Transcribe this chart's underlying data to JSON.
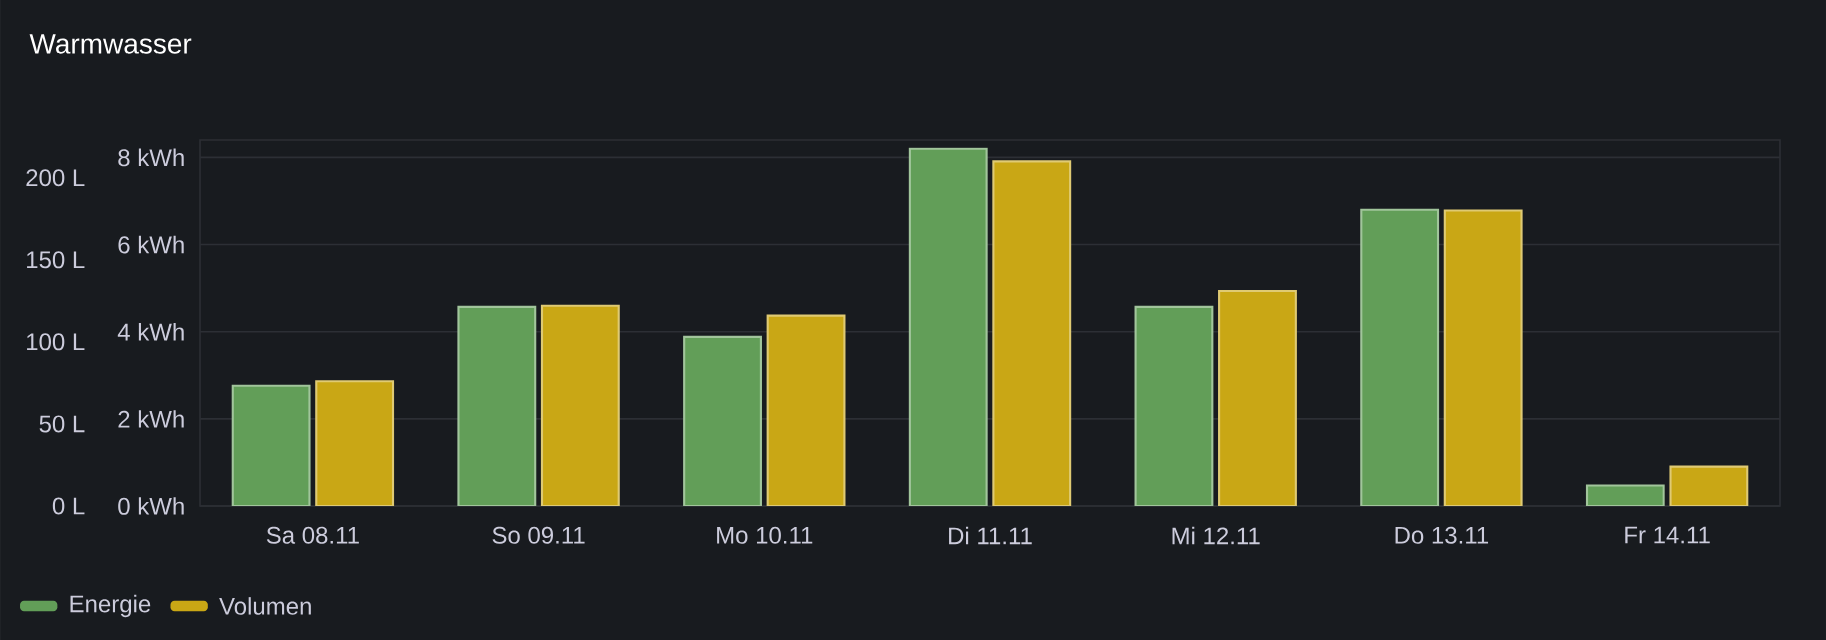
{
  "chart_data": {
    "type": "bar",
    "title": "Warmwasser",
    "categories": [
      "Sa 08.11",
      "So 09.11",
      "Mo 10.11",
      "Di 11.11",
      "Mi 12.11",
      "Do 13.11",
      "Fr 14.11"
    ],
    "series": [
      {
        "name": "Energie",
        "color": "#629e58",
        "values": [
          2.76,
          4.57,
          3.88,
          8.2,
          4.57,
          6.8,
          0.47
        ]
      },
      {
        "name": "Volumen",
        "color": "#c9a715",
        "axis": "y2",
        "values": [
          76,
          122,
          116,
          210,
          131,
          180,
          24
        ]
      }
    ],
    "ylim": [
      0,
      8.4
    ],
    "yticks": [
      {
        "value": 0,
        "label": "0 kWh"
      },
      {
        "value": 2,
        "label": "2 kWh"
      },
      {
        "value": 4,
        "label": "4 kWh"
      },
      {
        "value": 6,
        "label": "6 kWh"
      },
      {
        "value": 8,
        "label": "8 kWh"
      }
    ],
    "y2lim": [
      0,
      223
    ],
    "y2ticks": [
      {
        "value": 0,
        "label": "0 L"
      },
      {
        "value": 50,
        "label": "50 L"
      },
      {
        "value": 100,
        "label": "100 L"
      },
      {
        "value": 150,
        "label": "150 L"
      },
      {
        "value": 200,
        "label": "200 L"
      }
    ],
    "grid": "y",
    "legend": "bottom"
  }
}
